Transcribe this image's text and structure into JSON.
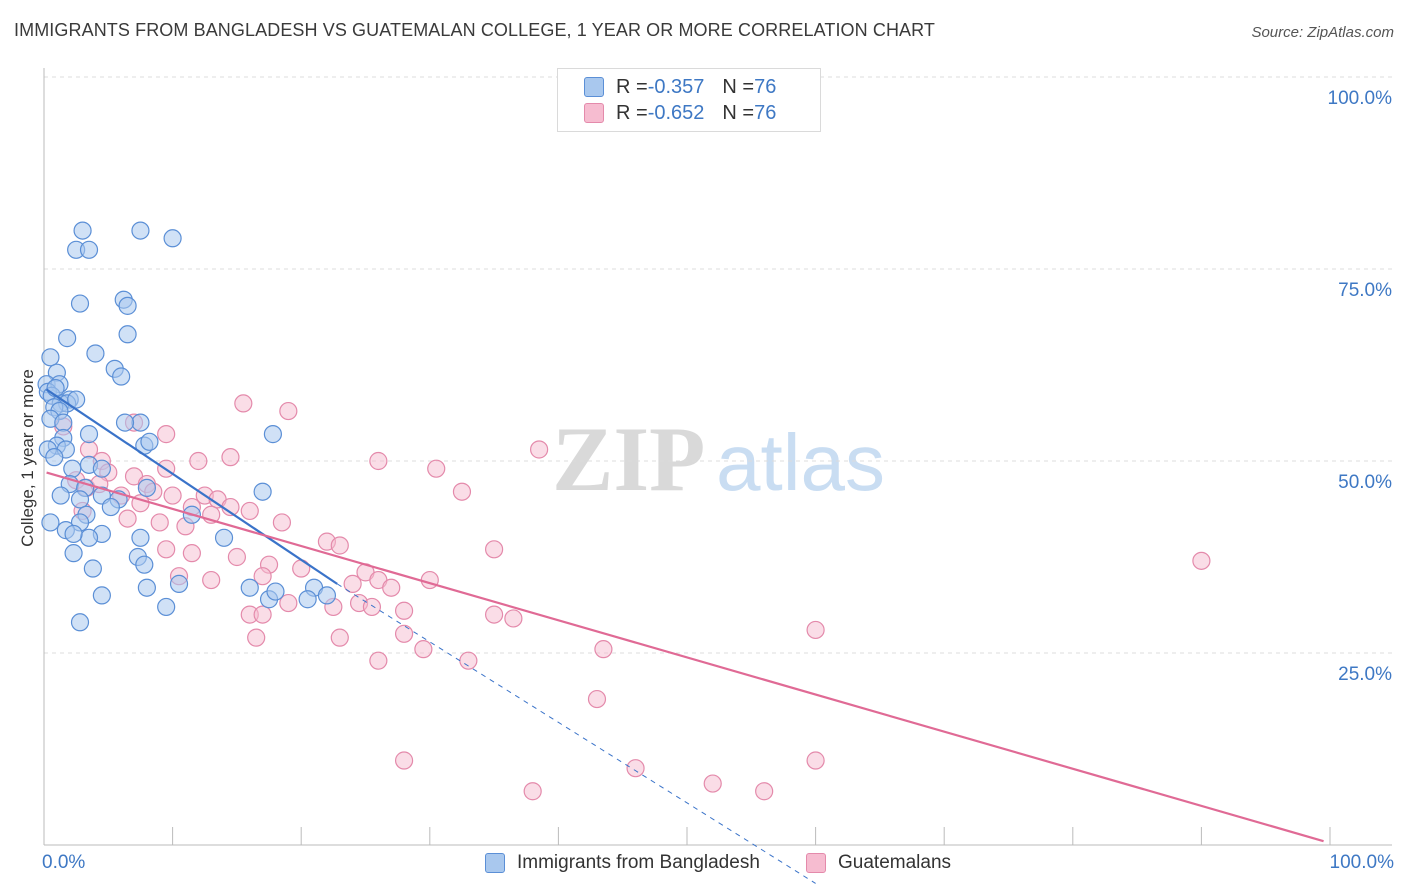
{
  "title": "IMMIGRANTS FROM BANGLADESH VS GUATEMALAN COLLEGE, 1 YEAR OR MORE CORRELATION CHART",
  "source": "Source: ZipAtlas.com",
  "watermark": {
    "zip": "ZIP",
    "atlas": "atlas"
  },
  "legend_top": {
    "rows": [
      {
        "r_label": "R = ",
        "r_value": "-0.357",
        "n_label": "N = ",
        "n_value": "76"
      },
      {
        "r_label": "R = ",
        "r_value": "-0.652",
        "n_label": "N = ",
        "n_value": "76"
      }
    ]
  },
  "legend_bottom": [
    "Immigrants from Bangladesh",
    "Guatemalans"
  ],
  "colors": {
    "blue_fill": "#a9c8ee",
    "blue_stroke": "#5b8fd6",
    "blue_line": "#3a73c9",
    "pink_fill": "#f6bcd0",
    "pink_stroke": "#e48aab",
    "pink_line": "#e06a95",
    "axis_label": "#3e78c4",
    "grid": "#dcdcdc"
  },
  "chart_data": {
    "type": "scatter",
    "title": "IMMIGRANTS FROM BANGLADESH VS GUATEMALAN COLLEGE, 1 YEAR OR MORE CORRELATION CHART",
    "xlabel": "",
    "ylabel": "College, 1 year or more",
    "xlim": [
      0,
      100
    ],
    "ylim": [
      0,
      100
    ],
    "x_tick_labels": [
      "0.0%",
      "100.0%"
    ],
    "y_tick_labels": [
      "100.0%",
      "75.0%",
      "50.0%",
      "25.0%"
    ],
    "y_ticks": [
      100,
      75,
      50,
      25
    ],
    "grid": true,
    "series": [
      {
        "name": "Immigrants from Bangladesh",
        "color": "blue",
        "r": -0.357,
        "n": 76,
        "trend": {
          "x0": 0.2,
          "y0": 59.3,
          "x1": 22.8,
          "y1": 34.0,
          "dash_to_x": 60,
          "dash_to_y": -5
        },
        "points": [
          [
            3.0,
            80.0
          ],
          [
            7.5,
            80.0
          ],
          [
            10.0,
            79.0
          ],
          [
            2.5,
            77.5
          ],
          [
            3.5,
            77.5
          ],
          [
            6.2,
            71.0
          ],
          [
            2.8,
            70.5
          ],
          [
            6.5,
            70.2
          ],
          [
            1.8,
            66.0
          ],
          [
            6.5,
            66.5
          ],
          [
            4.0,
            64.0
          ],
          [
            0.5,
            63.5
          ],
          [
            5.5,
            62.0
          ],
          [
            1.0,
            61.5
          ],
          [
            6.0,
            61.0
          ],
          [
            0.2,
            60.0
          ],
          [
            1.2,
            60.0
          ],
          [
            0.3,
            59.0
          ],
          [
            0.6,
            58.5
          ],
          [
            2.0,
            58.0
          ],
          [
            1.3,
            57.5
          ],
          [
            1.8,
            57.5
          ],
          [
            0.8,
            57.0
          ],
          [
            2.5,
            58.0
          ],
          [
            0.9,
            59.5
          ],
          [
            1.2,
            56.5
          ],
          [
            0.5,
            55.5
          ],
          [
            1.5,
            55.0
          ],
          [
            7.5,
            55.0
          ],
          [
            6.3,
            55.0
          ],
          [
            1.5,
            53.0
          ],
          [
            3.5,
            53.5
          ],
          [
            1.0,
            52.0
          ],
          [
            0.3,
            51.5
          ],
          [
            1.7,
            51.5
          ],
          [
            17.8,
            53.5
          ],
          [
            7.8,
            52.0
          ],
          [
            8.2,
            52.5
          ],
          [
            0.8,
            50.5
          ],
          [
            3.5,
            49.5
          ],
          [
            2.2,
            49.0
          ],
          [
            4.5,
            49.0
          ],
          [
            8.0,
            46.5
          ],
          [
            2.0,
            47.0
          ],
          [
            17.0,
            46.0
          ],
          [
            3.2,
            46.5
          ],
          [
            4.5,
            45.5
          ],
          [
            1.3,
            45.5
          ],
          [
            2.8,
            45.0
          ],
          [
            5.8,
            45.0
          ],
          [
            5.2,
            44.0
          ],
          [
            3.3,
            43.0
          ],
          [
            11.5,
            43.0
          ],
          [
            2.8,
            42.0
          ],
          [
            1.7,
            41.0
          ],
          [
            4.5,
            40.5
          ],
          [
            3.5,
            40.0
          ],
          [
            7.5,
            40.0
          ],
          [
            14.0,
            40.0
          ],
          [
            2.3,
            40.5
          ],
          [
            0.5,
            42.0
          ],
          [
            7.3,
            37.5
          ],
          [
            2.3,
            38.0
          ],
          [
            7.8,
            36.5
          ],
          [
            3.8,
            36.0
          ],
          [
            10.5,
            34.0
          ],
          [
            16.0,
            33.5
          ],
          [
            8.0,
            33.5
          ],
          [
            21.0,
            33.5
          ],
          [
            4.5,
            32.5
          ],
          [
            17.5,
            32.0
          ],
          [
            18.0,
            33.0
          ],
          [
            20.5,
            32.0
          ],
          [
            22.0,
            32.5
          ],
          [
            9.5,
            31.0
          ],
          [
            2.8,
            29.0
          ]
        ]
      },
      {
        "name": "Guatemalans",
        "color": "pink",
        "r": -0.652,
        "n": 76,
        "trend": {
          "x0": 0.2,
          "y0": 48.5,
          "x1": 99.5,
          "y1": 0.5
        }
      }
    ]
  }
}
